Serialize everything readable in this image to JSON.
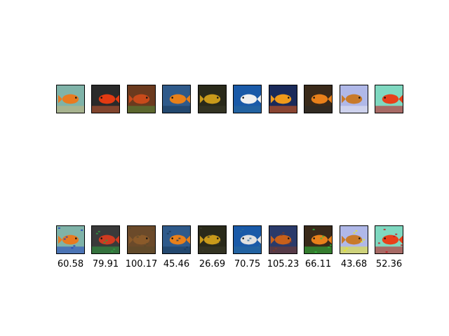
{
  "figure": {
    "original_images": [
      {
        "subject": "goldfish-photo",
        "palette": [
          "#7fb3a8",
          "#e87a20",
          "#c9b27a"
        ]
      },
      {
        "subject": "goldfish-photo",
        "palette": [
          "#2a2a2a",
          "#e23a12",
          "#c85a30"
        ]
      },
      {
        "subject": "goldfish-photo",
        "palette": [
          "#6b3a1e",
          "#c84a1a",
          "#4f8a3a"
        ]
      },
      {
        "subject": "goldfish-photo",
        "palette": [
          "#2f5a8a",
          "#e8801a",
          "#1a3a5a"
        ]
      },
      {
        "subject": "goldfish-photo",
        "palette": [
          "#2a2a1a",
          "#c99a1a",
          "#3a3a2a"
        ]
      },
      {
        "subject": "goldfish-photo",
        "palette": [
          "#1a5aa8",
          "#f0f0f0",
          "#2a6a9a"
        ]
      },
      {
        "subject": "goldfish-photo",
        "palette": [
          "#1a2a5a",
          "#f09a1a",
          "#e85a10"
        ]
      },
      {
        "subject": "goldfish-photo",
        "palette": [
          "#3a2a1a",
          "#e8801a",
          "#2a2a2a"
        ]
      },
      {
        "subject": "goldfish-photo",
        "palette": [
          "#b0b8e8",
          "#c87a2a",
          "#e8e8f0"
        ]
      },
      {
        "subject": "goldfish-photo",
        "palette": [
          "#7fd8c0",
          "#e8401a",
          "#c8101a"
        ]
      }
    ],
    "perturbed_images": [
      {
        "subject": "perturbed-goldfish-photo",
        "palette": [
          "#7fb3a8",
          "#e87a20",
          "#2040c0"
        ]
      },
      {
        "subject": "perturbed-goldfish-photo",
        "palette": [
          "#3a3a3a",
          "#d03a20",
          "#30a040"
        ]
      },
      {
        "subject": "perturbed-goldfish-photo",
        "palette": [
          "#6b4a2a",
          "#8a5a2a",
          "#5a4a2a"
        ]
      },
      {
        "subject": "perturbed-goldfish-photo",
        "palette": [
          "#2f5a8a",
          "#e8801a",
          "#1a3a5a"
        ]
      },
      {
        "subject": "perturbed-goldfish-photo",
        "palette": [
          "#2a2a1a",
          "#c99a1a",
          "#3a3a2a"
        ]
      },
      {
        "subject": "perturbed-goldfish-photo",
        "palette": [
          "#1a5aa8",
          "#e0e0e0",
          "#2a6a9a"
        ]
      },
      {
        "subject": "perturbed-goldfish-photo",
        "palette": [
          "#2a3a6a",
          "#c8601a",
          "#7a3a2a"
        ]
      },
      {
        "subject": "perturbed-goldfish-photo",
        "palette": [
          "#3a2a1a",
          "#e8801a",
          "#30c040"
        ]
      },
      {
        "subject": "perturbed-goldfish-photo",
        "palette": [
          "#b0b8e8",
          "#c87a2a",
          "#e8e820"
        ]
      },
      {
        "subject": "perturbed-goldfish-photo",
        "palette": [
          "#7fd8c0",
          "#e8401a",
          "#c8101a"
        ]
      }
    ],
    "scores": [
      "60.58",
      "79.91",
      "100.17",
      "45.46",
      "26.69",
      "70.75",
      "105.23",
      "66.11",
      "43.68",
      "52.36"
    ]
  }
}
